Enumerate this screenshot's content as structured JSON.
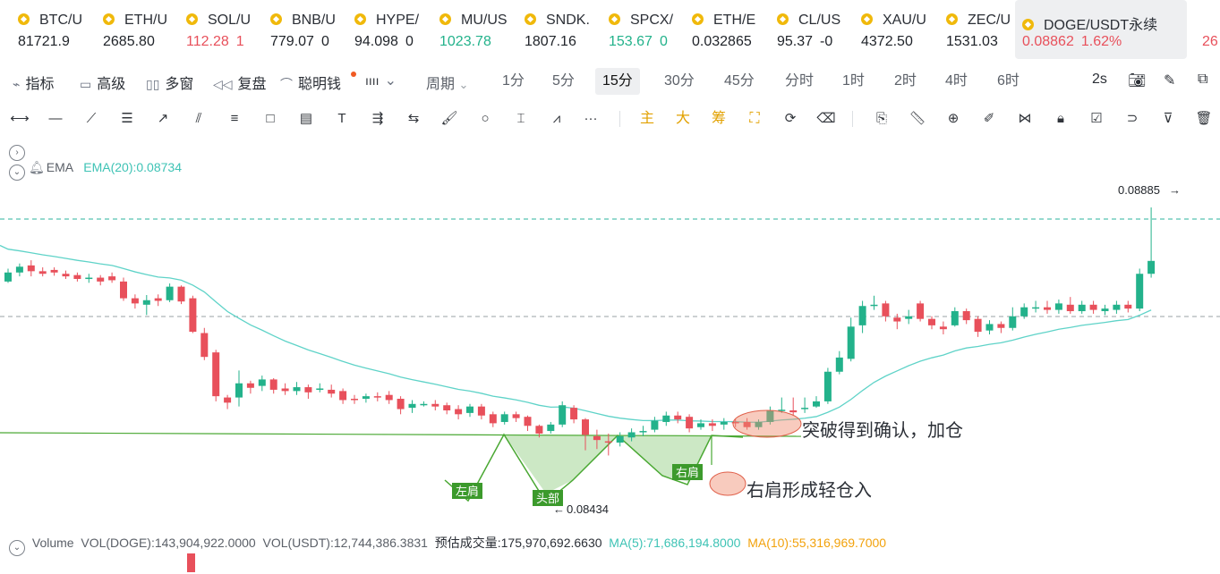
{
  "tickers": [
    {
      "symbol": "BTC/U",
      "price": "81721.9",
      "change": "",
      "color": "#1f2329",
      "icon": "binance-coin-icon"
    },
    {
      "symbol": "ETH/U",
      "price": "2685.80",
      "change": "",
      "color": "#1f2329",
      "icon": "binance-coin-icon"
    },
    {
      "symbol": "SOL/U",
      "price": "112.28",
      "change": "1",
      "color": "#e8505b",
      "icon": "binance-coin-icon"
    },
    {
      "symbol": "BNB/U",
      "price": "779.07",
      "change": "0",
      "color": "#1f2329",
      "icon": "binance-coin-icon"
    },
    {
      "symbol": "HYPE/",
      "price": "94.098",
      "change": "0",
      "color": "#1f2329",
      "icon": "binance-coin-icon"
    },
    {
      "symbol": "MU/US",
      "price": "1023.78",
      "change": "",
      "color": "#23b28b",
      "icon": "binance-coin-icon"
    },
    {
      "symbol": "SNDK.",
      "price": "1807.16",
      "change": "",
      "color": "#1f2329",
      "icon": "binance-coin-icon"
    },
    {
      "symbol": "SPCX/",
      "price": "153.67",
      "change": "0",
      "color": "#23b28b",
      "icon": "binance-coin-icon"
    },
    {
      "symbol": "ETH/E",
      "price": "0.032865",
      "change": "",
      "color": "#1f2329",
      "icon": "binance-coin-icon"
    },
    {
      "symbol": "CL/US",
      "price": "95.37",
      "change": "-0",
      "color": "#1f2329",
      "icon": "binance-coin-icon"
    },
    {
      "symbol": "XAU/U",
      "price": "4372.50",
      "change": "",
      "color": "#1f2329",
      "icon": "binance-coin-icon"
    },
    {
      "symbol": "ZEC/U",
      "price": "1531.03",
      "change": "",
      "color": "#1f2329",
      "icon": "binance-coin-icon"
    },
    {
      "symbol": "DOGE/USDT永续",
      "price": "0.08862",
      "change": "1.62%",
      "color": "#e8505b",
      "icon": "binance-coin-icon",
      "active": true
    },
    {
      "symbol": "",
      "price": "26",
      "change": "",
      "color": "#e8505b",
      "icon": ""
    }
  ],
  "toolbar": {
    "indicators": "指标",
    "advanced": "高级",
    "multiwindow": "多窗",
    "replay": "复盘",
    "smart_money": "聪明钱",
    "period": "周期",
    "timeframes": [
      "1分",
      "5分",
      "15分",
      "30分",
      "45分",
      "分时",
      "1时",
      "2时",
      "4时",
      "6时"
    ],
    "selected_tf": "15分",
    "refresh": "2s"
  },
  "drawing_tools": {
    "main": "主",
    "big": "大",
    "chip": "筹"
  },
  "legend": {
    "ema_name": "EMA",
    "ema_value": "EMA(20):0.08734",
    "volume_name": "Volume",
    "vol_doge": "VOL(DOGE):143,904,922.0000",
    "vol_usdt": "VOL(USDT):12,744,386.3831",
    "est_vol": "预估成交量:175,970,692.6630",
    "ma5": "MA(5):71,686,194.8000",
    "ma10": "MA(10):55,316,969.7000"
  },
  "colors": {
    "up": "#23b28b",
    "down": "#e8505b",
    "ema": "#5fd3c8",
    "neckline": "#4aa833",
    "accent": "#f0b90b"
  },
  "chart_data": {
    "type": "candlestick",
    "symbol": "DOGE/USDT永续",
    "interval": "15分",
    "last_price_label": "0.08885",
    "low_label": "0.08434",
    "pattern_labels": {
      "left_shoulder": "左肩",
      "head": "头部",
      "right_shoulder": "右肩"
    },
    "annotations": [
      "突破得到确认，加仓",
      "右肩形成轻仓入"
    ],
    "candles": [
      [
        0.0877,
        0.08784,
        0.0879,
        0.08768
      ],
      [
        0.08784,
        0.08793,
        0.08798,
        0.08778
      ],
      [
        0.08795,
        0.08786,
        0.08803,
        0.08778
      ],
      [
        0.08786,
        0.08782,
        0.08792,
        0.08778
      ],
      [
        0.08788,
        0.08784,
        0.08792,
        0.08779
      ],
      [
        0.08782,
        0.08778,
        0.08787,
        0.08774
      ],
      [
        0.0878,
        0.08774,
        0.08784,
        0.0877
      ],
      [
        0.08774,
        0.08776,
        0.08782,
        0.08768
      ],
      [
        0.08776,
        0.0877,
        0.0878,
        0.08764
      ],
      [
        0.08778,
        0.08772,
        0.08784,
        0.08768
      ],
      [
        0.0877,
        0.08744,
        0.08776,
        0.0874
      ],
      [
        0.08744,
        0.08736,
        0.0875,
        0.08728
      ],
      [
        0.08734,
        0.08741,
        0.08749,
        0.08718
      ],
      [
        0.08744,
        0.0874,
        0.0875,
        0.08732
      ],
      [
        0.08741,
        0.08762,
        0.08767,
        0.08738
      ],
      [
        0.08762,
        0.08739,
        0.08764,
        0.08735
      ],
      [
        0.08744,
        0.08692,
        0.08748,
        0.0869
      ],
      [
        0.0869,
        0.08653,
        0.08698,
        0.08648
      ],
      [
        0.0866,
        0.08592,
        0.08664,
        0.08584
      ],
      [
        0.0859,
        0.08582,
        0.08594,
        0.08572
      ],
      [
        0.0859,
        0.08612,
        0.08632,
        0.08576
      ],
      [
        0.08612,
        0.08605,
        0.08616,
        0.08596
      ],
      [
        0.08608,
        0.08618,
        0.08624,
        0.086
      ],
      [
        0.08618,
        0.08602,
        0.0862,
        0.08596
      ],
      [
        0.08604,
        0.086,
        0.08612,
        0.08594
      ],
      [
        0.086,
        0.08606,
        0.08614,
        0.08594
      ],
      [
        0.08606,
        0.08598,
        0.0861,
        0.08588
      ],
      [
        0.08604,
        0.08604,
        0.08612,
        0.08598
      ],
      [
        0.08602,
        0.08596,
        0.0861,
        0.0859
      ],
      [
        0.086,
        0.08586,
        0.08604,
        0.0858
      ],
      [
        0.08588,
        0.08586,
        0.08594,
        0.0858
      ],
      [
        0.08588,
        0.08592,
        0.08596,
        0.08582
      ],
      [
        0.08592,
        0.0859,
        0.08598,
        0.08584
      ],
      [
        0.08594,
        0.08586,
        0.086,
        0.0858
      ],
      [
        0.08588,
        0.08572,
        0.08592,
        0.08564
      ],
      [
        0.08574,
        0.0858,
        0.08586,
        0.08566
      ],
      [
        0.0858,
        0.0858,
        0.08584,
        0.08576
      ],
      [
        0.0858,
        0.08576,
        0.08586,
        0.0857
      ],
      [
        0.08578,
        0.0857,
        0.08582,
        0.08564
      ],
      [
        0.08572,
        0.08564,
        0.08578,
        0.08556
      ],
      [
        0.08566,
        0.08576,
        0.0858,
        0.0856
      ],
      [
        0.08576,
        0.08562,
        0.0858,
        0.08556
      ],
      [
        0.08564,
        0.0855,
        0.08568,
        0.08544
      ],
      [
        0.08552,
        0.08564,
        0.08568,
        0.08548
      ],
      [
        0.08564,
        0.08558,
        0.08568,
        0.08552
      ],
      [
        0.0856,
        0.08546,
        0.08562,
        0.08538
      ],
      [
        0.08546,
        0.08534,
        0.08548,
        0.08528
      ],
      [
        0.08538,
        0.08548,
        0.08552,
        0.08534
      ],
      [
        0.08548,
        0.08578,
        0.08584,
        0.08544
      ],
      [
        0.08574,
        0.08556,
        0.08578,
        0.0855
      ],
      [
        0.08556,
        0.08532,
        0.08558,
        0.08508
      ],
      [
        0.0853,
        0.08524,
        0.0854,
        0.0851
      ],
      [
        0.08522,
        0.0852,
        0.08534,
        0.085
      ],
      [
        0.0852,
        0.0853,
        0.08536,
        0.08514
      ],
      [
        0.08528,
        0.08536,
        0.08542,
        0.08522
      ],
      [
        0.08536,
        0.08538,
        0.08546,
        0.0853
      ],
      [
        0.0854,
        0.08554,
        0.0856,
        0.08536
      ],
      [
        0.08552,
        0.08562,
        0.08568,
        0.08546
      ],
      [
        0.08562,
        0.08556,
        0.08568,
        0.0855
      ],
      [
        0.0856,
        0.08542,
        0.08564,
        0.08536
      ],
      [
        0.08544,
        0.0855,
        0.08556,
        0.0854
      ],
      [
        0.0855,
        0.08546,
        0.08556,
        0.08538
      ],
      [
        0.08548,
        0.08552,
        0.08558,
        0.0854
      ],
      [
        0.08552,
        0.0855,
        0.08556,
        0.08544
      ],
      [
        0.08552,
        0.08544,
        0.08558,
        0.0854
      ],
      [
        0.08544,
        0.08552,
        0.08556,
        0.0854
      ],
      [
        0.08552,
        0.0857,
        0.08576,
        0.08548
      ],
      [
        0.0857,
        0.08571,
        0.0859,
        0.08566
      ],
      [
        0.0857,
        0.08567,
        0.0859,
        0.08562
      ],
      [
        0.08572,
        0.08574,
        0.0859,
        0.08566
      ],
      [
        0.08576,
        0.08584,
        0.08592,
        0.08574
      ],
      [
        0.08584,
        0.0863,
        0.08636,
        0.0858
      ],
      [
        0.0863,
        0.08652,
        0.08662,
        0.08626
      ],
      [
        0.0865,
        0.087,
        0.08714,
        0.08646
      ],
      [
        0.08702,
        0.08732,
        0.0874,
        0.0869
      ],
      [
        0.08732,
        0.08734,
        0.08748,
        0.08726
      ],
      [
        0.08736,
        0.08716,
        0.0874,
        0.08708
      ],
      [
        0.08714,
        0.08708,
        0.0872,
        0.08696
      ],
      [
        0.08712,
        0.08716,
        0.08726,
        0.08704
      ],
      [
        0.08736,
        0.08712,
        0.0874,
        0.08708
      ],
      [
        0.08712,
        0.08702,
        0.08716,
        0.08696
      ],
      [
        0.087,
        0.08696,
        0.08708,
        0.08688
      ],
      [
        0.08702,
        0.08724,
        0.0873,
        0.087
      ],
      [
        0.08724,
        0.0871,
        0.08728,
        0.08704
      ],
      [
        0.08712,
        0.08692,
        0.08716,
        0.08684
      ],
      [
        0.08694,
        0.08704,
        0.0871,
        0.08688
      ],
      [
        0.08704,
        0.08698,
        0.08708,
        0.0869
      ],
      [
        0.08698,
        0.08716,
        0.0873,
        0.08694
      ],
      [
        0.08716,
        0.0873,
        0.08736,
        0.08712
      ],
      [
        0.0873,
        0.0873,
        0.0874,
        0.08722
      ],
      [
        0.0873,
        0.08726,
        0.0874,
        0.0872
      ],
      [
        0.08726,
        0.08736,
        0.08742,
        0.0872
      ],
      [
        0.08734,
        0.08724,
        0.08746,
        0.0872
      ],
      [
        0.08724,
        0.08734,
        0.0874,
        0.0872
      ],
      [
        0.08734,
        0.08726,
        0.0874,
        0.0872
      ],
      [
        0.08724,
        0.08728,
        0.08734,
        0.08718
      ],
      [
        0.08726,
        0.08734,
        0.0874,
        0.0872
      ],
      [
        0.08734,
        0.08728,
        0.0874,
        0.08722
      ],
      [
        0.08728,
        0.08782,
        0.0879,
        0.08724
      ],
      [
        0.08782,
        0.08802,
        0.08885,
        0.08776
      ]
    ]
  }
}
